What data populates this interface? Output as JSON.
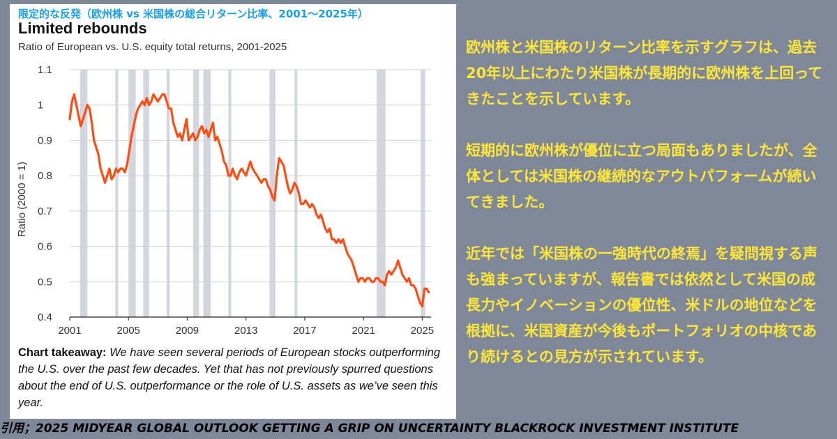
{
  "card": {
    "jp_title": "限定的な反発（欧州株 vs 米国株の総合リターン比率、2001〜2025年）",
    "en_title": "Limited rebounds",
    "subtitle": "Ratio of European vs. U.S. equity total returns, 2001-2025",
    "takeaway_label": "Chart takeaway:",
    "takeaway_text": "We have seen several periods of European stocks outperforming the U.S. over the past few decades. Yet that has not previously spurred questions about the end of U.S. outperformance or the role of U.S. assets as we’ve seen this year."
  },
  "chart_data": {
    "type": "line",
    "title": "Limited rebounds",
    "subtitle": "Ratio of European vs. U.S. equity total returns, 2001-2025",
    "ylabel": "Ratio (2000 = 1)",
    "xlim": [
      2001,
      2025.6
    ],
    "ylim": [
      0.4,
      1.1
    ],
    "x_ticks": [
      "2001",
      "2005",
      "2009",
      "2013",
      "2017",
      "2021",
      "2025"
    ],
    "y_ticks": [
      "0.4",
      "0.5",
      "0.6",
      "0.7",
      "0.8",
      "0.9",
      "1",
      "1.1"
    ],
    "grid": "horizontal",
    "line_color": "#ff4c12",
    "shade_color": "#d3d6dd",
    "shaded_periods": [
      [
        2001.7,
        2002.2
      ],
      [
        2004.1,
        2004.3
      ],
      [
        2005.0,
        2005.5
      ],
      [
        2006.0,
        2006.4
      ],
      [
        2007.6,
        2007.8
      ],
      [
        2009.4,
        2009.8
      ],
      [
        2010.1,
        2010.6
      ],
      [
        2011.8,
        2012.0
      ],
      [
        2014.6,
        2015.0
      ],
      [
        2016.3,
        2016.5
      ],
      [
        2021.9,
        2022.5
      ],
      [
        2024.9,
        2025.2
      ]
    ],
    "series": [
      {
        "x": [
          2001.0,
          2001.15,
          2001.3,
          2001.45,
          2001.6,
          2001.75,
          2001.9,
          2002.05,
          2002.2,
          2002.35,
          2002.5,
          2002.65,
          2002.8,
          2002.95,
          2003.1,
          2003.25,
          2003.4,
          2003.55,
          2003.7,
          2003.85,
          2004.0,
          2004.15,
          2004.3,
          2004.45,
          2004.6,
          2004.75,
          2004.9,
          2005.05,
          2005.2,
          2005.35,
          2005.5,
          2005.65,
          2005.8,
          2005.95,
          2006.1,
          2006.25,
          2006.4,
          2006.55,
          2006.7,
          2006.85,
          2007.0,
          2007.15,
          2007.3,
          2007.45,
          2007.6,
          2007.75,
          2007.9,
          2008.05,
          2008.2,
          2008.35,
          2008.5,
          2008.65,
          2008.8,
          2008.95,
          2009.1,
          2009.25,
          2009.4,
          2009.55,
          2009.7,
          2009.85,
          2010.0,
          2010.15,
          2010.3,
          2010.45,
          2010.6,
          2010.75,
          2010.9,
          2011.05,
          2011.2,
          2011.35,
          2011.5,
          2011.65,
          2011.8,
          2011.95,
          2012.1,
          2012.25,
          2012.4,
          2012.55,
          2012.7,
          2012.85,
          2013.0,
          2013.15,
          2013.3,
          2013.45,
          2013.6,
          2013.75,
          2013.9,
          2014.05,
          2014.2,
          2014.35,
          2014.5,
          2014.65,
          2014.8,
          2014.95,
          2015.1,
          2015.25,
          2015.4,
          2015.55,
          2015.7,
          2015.85,
          2016.0,
          2016.15,
          2016.3,
          2016.45,
          2016.6,
          2016.75,
          2016.9,
          2017.05,
          2017.2,
          2017.35,
          2017.5,
          2017.65,
          2017.8,
          2017.95,
          2018.1,
          2018.25,
          2018.4,
          2018.55,
          2018.7,
          2018.85,
          2019.0,
          2019.15,
          2019.3,
          2019.45,
          2019.6,
          2019.75,
          2019.9,
          2020.05,
          2020.2,
          2020.35,
          2020.5,
          2020.65,
          2020.8,
          2020.95,
          2021.1,
          2021.25,
          2021.4,
          2021.55,
          2021.7,
          2021.85,
          2022.0,
          2022.15,
          2022.3,
          2022.45,
          2022.6,
          2022.75,
          2022.9,
          2023.05,
          2023.2,
          2023.35,
          2023.5,
          2023.65,
          2023.8,
          2023.95,
          2024.1,
          2024.25,
          2024.4,
          2024.55,
          2024.7,
          2024.85,
          2025.0,
          2025.15,
          2025.3,
          2025.45
        ],
        "y": [
          0.96,
          1.01,
          1.03,
          1.0,
          0.97,
          0.94,
          0.96,
          0.98,
          1.0,
          0.99,
          0.95,
          0.9,
          0.88,
          0.86,
          0.82,
          0.8,
          0.78,
          0.8,
          0.82,
          0.79,
          0.8,
          0.82,
          0.81,
          0.82,
          0.82,
          0.81,
          0.83,
          0.87,
          0.91,
          0.94,
          0.97,
          0.99,
          1.0,
          1.01,
          1.0,
          1.02,
          1.0,
          1.01,
          1.03,
          1.02,
          1.01,
          1.02,
          1.03,
          1.03,
          1.01,
          0.99,
          0.99,
          0.95,
          0.93,
          0.91,
          0.92,
          0.9,
          0.93,
          0.96,
          0.9,
          0.91,
          0.92,
          0.9,
          0.91,
          0.93,
          0.94,
          0.92,
          0.93,
          0.91,
          0.93,
          0.95,
          0.9,
          0.91,
          0.89,
          0.87,
          0.84,
          0.83,
          0.8,
          0.8,
          0.82,
          0.8,
          0.79,
          0.81,
          0.82,
          0.81,
          0.8,
          0.82,
          0.84,
          0.82,
          0.81,
          0.8,
          0.79,
          0.78,
          0.79,
          0.79,
          0.77,
          0.76,
          0.74,
          0.73,
          0.8,
          0.85,
          0.84,
          0.83,
          0.8,
          0.77,
          0.75,
          0.76,
          0.78,
          0.77,
          0.75,
          0.72,
          0.72,
          0.73,
          0.72,
          0.71,
          0.72,
          0.71,
          0.69,
          0.68,
          0.69,
          0.67,
          0.65,
          0.64,
          0.65,
          0.62,
          0.62,
          0.61,
          0.62,
          0.61,
          0.62,
          0.6,
          0.58,
          0.57,
          0.56,
          0.54,
          0.52,
          0.5,
          0.51,
          0.51,
          0.5,
          0.51,
          0.51,
          0.5,
          0.5,
          0.51,
          0.51,
          0.5,
          0.5,
          0.49,
          0.52,
          0.53,
          0.52,
          0.53,
          0.54,
          0.56,
          0.54,
          0.52,
          0.51,
          0.5,
          0.51,
          0.49,
          0.49,
          0.48,
          0.46,
          0.44,
          0.43,
          0.48,
          0.48,
          0.47
        ]
      }
    ]
  },
  "side": {
    "paragraphs": [
      "欧州株と米国株のリターン比率を示すグラフは、過去20年以上にわたり米国株が長期的に欧州株を上回ってきたことを示しています。",
      "短期的に欧州株が優位に立つ局面もありましたが、全体としては米国株の継続的なアウトパフォームが続いてきました。",
      "近年では「米国株の一強時代の終焉」を疑問視する声も強まっていますが、報告書では依然として米国の成長力やイノベーションの優位性、米ドルの地位などを根拠に、米国資産が今後もポートフォリオの中核であり続けるとの見方が示されています。"
    ]
  },
  "citation": "引用；2025 MIDYEAR GLOBAL OUTLOOK GETTING A GRIP ON UNCERTAINTY BLACKROCK INVESTMENT INSTITUTE"
}
